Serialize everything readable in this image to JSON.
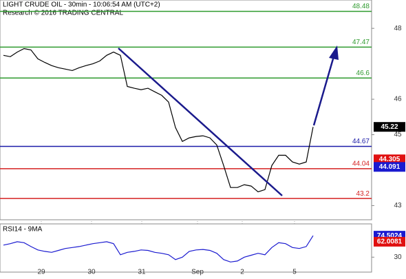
{
  "chart_data": [
    {
      "type": "line",
      "title": "LIGHT CRUDE OIL - 30min - 10:06:54 AM (UTC+2)",
      "subtitle": "Research © 2016 TRADING CENTRAL",
      "x": [
        0,
        1,
        2,
        3,
        4,
        5,
        6,
        7,
        8,
        9,
        10,
        11,
        12,
        13,
        14,
        15,
        16,
        17,
        18,
        19,
        20,
        21,
        22,
        23,
        24,
        25,
        26,
        27,
        28,
        29,
        30,
        31,
        32,
        33,
        34,
        35,
        36,
        37,
        38,
        39,
        40,
        41,
        42,
        43,
        44,
        45
      ],
      "series": [
        {
          "name": "LIGHT CRUDE OIL",
          "color": "#000000",
          "values": [
            47.24,
            47.2,
            47.33,
            47.43,
            47.39,
            47.14,
            47.04,
            46.95,
            46.89,
            46.85,
            46.81,
            46.89,
            46.95,
            47.0,
            47.08,
            47.24,
            47.33,
            47.24,
            46.36,
            46.31,
            46.27,
            46.31,
            46.21,
            46.11,
            45.92,
            45.2,
            44.81,
            44.91,
            44.95,
            44.97,
            44.91,
            44.71,
            44.13,
            43.51,
            43.51,
            43.59,
            43.55,
            43.39,
            43.45,
            44.13,
            44.42,
            44.42,
            44.23,
            44.17,
            44.23,
            45.22
          ]
        }
      ],
      "xlim": [
        -0.5,
        53.5
      ],
      "ylim": [
        42.6,
        48.8
      ],
      "yticks": [
        48,
        46,
        45,
        43
      ],
      "levels": [
        {
          "value": 48.48,
          "color": "#2e9a2e"
        },
        {
          "value": 47.47,
          "color": "#2e9a2e"
        },
        {
          "value": 46.6,
          "color": "#2e9a2e"
        },
        {
          "value": 44.67,
          "color": "#1a1aa8"
        },
        {
          "value": 44.04,
          "color": "#d42020"
        },
        {
          "value": 43.2,
          "color": "#d42020"
        }
      ],
      "markers": [
        {
          "value": 45.22,
          "color": "#000000"
        },
        {
          "value": 44.305,
          "color": "#e01010"
        },
        {
          "value": 44.091,
          "color": "#1a1ad0"
        }
      ]
    },
    {
      "type": "line",
      "title": "RSI14 - 9MA",
      "x": [
        0,
        1,
        2,
        3,
        4,
        5,
        6,
        7,
        8,
        9,
        10,
        11,
        12,
        13,
        14,
        15,
        16,
        17,
        18,
        19,
        20,
        21,
        22,
        23,
        24,
        25,
        26,
        27,
        28,
        29,
        30,
        31,
        32,
        33,
        34,
        35,
        36,
        37,
        38,
        39,
        40,
        41,
        42,
        43,
        44,
        45
      ],
      "series": [
        {
          "name": "RSI14",
          "color": "#1a1ad0",
          "values": [
            55,
            58,
            62,
            60,
            52,
            45,
            42,
            40,
            44,
            48,
            50,
            52,
            55,
            58,
            60,
            62,
            58,
            35,
            40,
            42,
            45,
            44,
            40,
            38,
            35,
            25,
            30,
            42,
            45,
            46,
            44,
            38,
            25,
            20,
            22,
            30,
            34,
            38,
            35,
            50,
            60,
            58,
            50,
            48,
            52,
            74.5024
          ]
        }
      ],
      "xlim": [
        -0.5,
        53.5
      ],
      "ylim": [
        -1,
        99
      ],
      "yticks": [
        30
      ],
      "xticks": [
        {
          "value": 5.5,
          "label": "29"
        },
        {
          "value": 12.8,
          "label": "30"
        },
        {
          "value": 20.1,
          "label": "31"
        },
        {
          "value": 28.2,
          "label": "Sep"
        },
        {
          "value": 34.7,
          "label": "2"
        },
        {
          "value": 42.3,
          "label": "5"
        }
      ],
      "markers": [
        {
          "value": 74.5024,
          "color": "#1a1ad0"
        },
        {
          "value": 62.0081,
          "color": "#e01010"
        }
      ]
    }
  ]
}
